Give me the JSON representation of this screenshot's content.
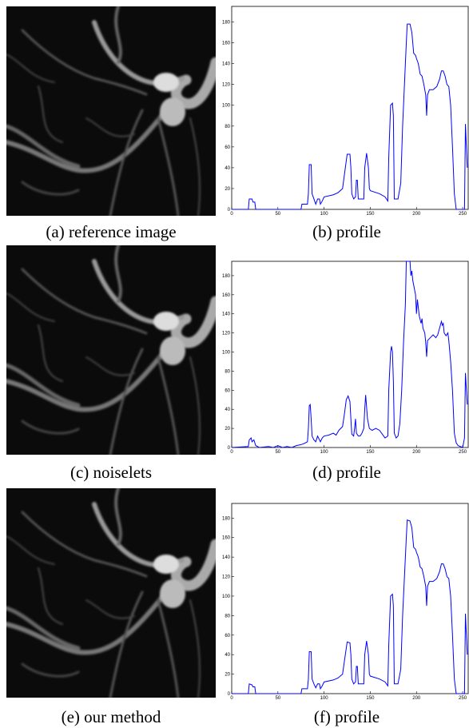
{
  "images": [
    {
      "caption": "(a) reference image"
    },
    {
      "caption": "(c) noiselets"
    },
    {
      "caption": "(e) our method"
    }
  ],
  "chart_data": [
    {
      "type": "line",
      "caption": "(b) profile",
      "color": "#0000ff",
      "xlim": [
        0,
        256
      ],
      "ylim": [
        0,
        195
      ],
      "xticks": [
        0,
        50,
        100,
        150,
        200,
        250
      ],
      "yticks": [
        0,
        20,
        40,
        60,
        80,
        100,
        120,
        140,
        160,
        180
      ],
      "x": [
        0,
        18,
        19,
        22,
        23,
        25,
        26,
        75,
        76,
        82,
        83,
        84,
        86,
        87,
        89,
        91,
        93,
        95,
        96,
        98,
        100,
        110,
        115,
        120,
        123,
        125,
        128,
        129,
        130,
        132,
        134,
        135,
        136,
        137,
        143,
        144,
        146,
        148,
        149,
        150,
        160,
        166,
        169,
        170,
        172,
        174,
        175,
        176,
        180,
        183,
        185,
        187,
        189,
        190,
        193,
        195,
        197,
        199,
        200,
        202,
        204,
        206,
        208,
        210,
        211,
        212,
        214,
        218,
        222,
        225,
        227,
        229,
        231,
        233,
        235,
        237,
        239,
        241,
        243,
        252,
        253,
        255
      ],
      "values": [
        0,
        0,
        10,
        10,
        7,
        7,
        0,
        0,
        5,
        5,
        15,
        43,
        43,
        15,
        10,
        5,
        10,
        10,
        5,
        8,
        12,
        14,
        16,
        20,
        40,
        53,
        53,
        40,
        15,
        10,
        12,
        28,
        28,
        10,
        10,
        40,
        54,
        40,
        20,
        18,
        15,
        12,
        8,
        50,
        100,
        102,
        90,
        10,
        10,
        25,
        80,
        120,
        160,
        178,
        178,
        170,
        150,
        148,
        145,
        140,
        130,
        128,
        120,
        110,
        90,
        110,
        115,
        115,
        118,
        125,
        133,
        133,
        128,
        120,
        118,
        100,
        60,
        15,
        0,
        0,
        82,
        40
      ]
    },
    {
      "type": "line",
      "caption": "(d) profile",
      "color": "#0000ff",
      "xlim": [
        0,
        256
      ],
      "ylim": [
        0,
        195
      ],
      "xticks": [
        0,
        50,
        100,
        150,
        200,
        250
      ],
      "yticks": [
        0,
        20,
        40,
        60,
        80,
        100,
        120,
        140,
        160,
        180
      ],
      "x": [
        0,
        18,
        19,
        21,
        22,
        24,
        26,
        30,
        40,
        45,
        50,
        55,
        60,
        65,
        70,
        75,
        78,
        82,
        83,
        84,
        85,
        86,
        87,
        89,
        91,
        93,
        95,
        96,
        98,
        100,
        105,
        110,
        113,
        116,
        120,
        122,
        124,
        126,
        128,
        129,
        130,
        132,
        133,
        134,
        135,
        137,
        139,
        141,
        143,
        144,
        145,
        147,
        149,
        152,
        156,
        160,
        163,
        166,
        169,
        170,
        172,
        173,
        174,
        175,
        176,
        178,
        180,
        182,
        184,
        186,
        188,
        189,
        193,
        194,
        195,
        196,
        198,
        199,
        200,
        201,
        203,
        205,
        206,
        207,
        209,
        210,
        211,
        212,
        215,
        218,
        221,
        223,
        225,
        227,
        228,
        229,
        230,
        232,
        234,
        235,
        237,
        239,
        241,
        243,
        245,
        250,
        252,
        253,
        255
      ],
      "values": [
        0,
        1,
        8,
        10,
        6,
        8,
        2,
        0,
        1,
        0,
        2,
        0,
        1,
        0,
        2,
        3,
        4,
        6,
        20,
        44,
        45,
        30,
        12,
        8,
        6,
        12,
        8,
        6,
        10,
        12,
        13,
        15,
        13,
        18,
        22,
        35,
        50,
        54,
        48,
        30,
        14,
        12,
        20,
        30,
        15,
        12,
        12,
        15,
        20,
        40,
        55,
        30,
        20,
        18,
        20,
        18,
        14,
        10,
        12,
        60,
        100,
        106,
        100,
        70,
        15,
        10,
        12,
        25,
        60,
        110,
        150,
        195,
        195,
        180,
        185,
        175,
        165,
        160,
        140,
        155,
        138,
        130,
        135,
        125,
        120,
        110,
        95,
        112,
        115,
        118,
        115,
        118,
        125,
        132,
        128,
        130,
        120,
        117,
        120,
        112,
        90,
        60,
        15,
        5,
        2,
        0,
        10,
        78,
        45
      ]
    },
    {
      "type": "line",
      "caption": "(f) profile",
      "color": "#0000ff",
      "xlim": [
        0,
        256
      ],
      "ylim": [
        0,
        195
      ],
      "xticks": [
        0,
        50,
        100,
        150,
        200,
        250
      ],
      "yticks": [
        0,
        20,
        40,
        60,
        80,
        100,
        120,
        140,
        160,
        180
      ],
      "x": [
        0,
        18,
        19,
        22,
        23,
        25,
        26,
        75,
        76,
        82,
        83,
        84,
        86,
        87,
        89,
        91,
        93,
        95,
        96,
        98,
        100,
        110,
        115,
        120,
        123,
        125,
        128,
        129,
        130,
        132,
        134,
        135,
        136,
        137,
        143,
        144,
        146,
        148,
        149,
        150,
        160,
        166,
        169,
        170,
        172,
        174,
        175,
        176,
        180,
        183,
        185,
        187,
        189,
        190,
        193,
        195,
        197,
        199,
        200,
        202,
        204,
        206,
        208,
        210,
        211,
        212,
        214,
        218,
        222,
        225,
        227,
        229,
        231,
        233,
        235,
        237,
        239,
        241,
        243,
        252,
        253,
        255
      ],
      "values": [
        0,
        0,
        10,
        9,
        7,
        7,
        0,
        0,
        5,
        5,
        15,
        43,
        43,
        15,
        10,
        6,
        10,
        10,
        5,
        8,
        12,
        14,
        16,
        20,
        40,
        53,
        52,
        40,
        15,
        10,
        12,
        28,
        28,
        10,
        10,
        40,
        54,
        40,
        20,
        18,
        15,
        12,
        8,
        50,
        100,
        102,
        90,
        10,
        10,
        25,
        80,
        120,
        160,
        178,
        177,
        170,
        150,
        148,
        145,
        140,
        130,
        128,
        120,
        110,
        90,
        110,
        115,
        115,
        118,
        125,
        133,
        133,
        128,
        120,
        118,
        100,
        60,
        15,
        0,
        0,
        82,
        40
      ]
    }
  ]
}
